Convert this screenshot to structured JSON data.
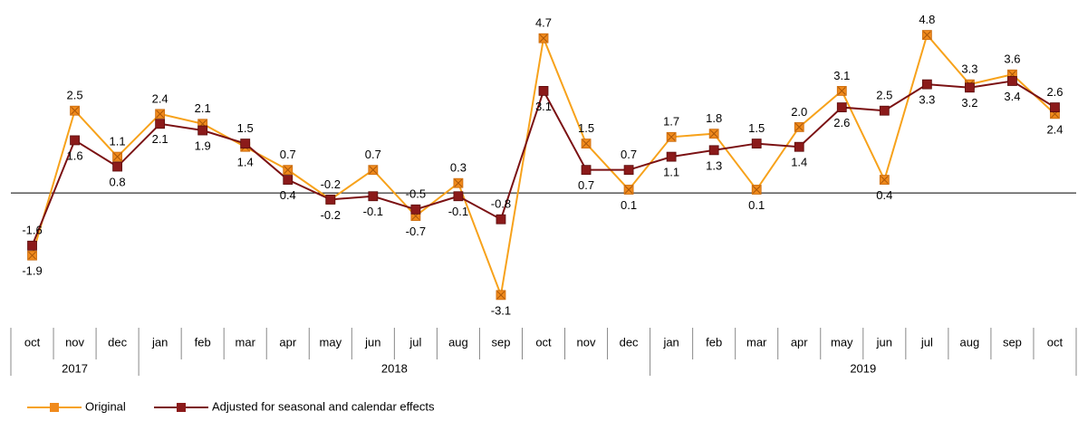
{
  "chart_data": {
    "type": "line",
    "categories": [
      "oct",
      "nov",
      "dec",
      "jan",
      "feb",
      "mar",
      "apr",
      "may",
      "jun",
      "jul",
      "aug",
      "sep",
      "oct",
      "nov",
      "dec",
      "jan",
      "feb",
      "mar",
      "apr",
      "may",
      "jun",
      "jul",
      "aug",
      "sep",
      "oct"
    ],
    "category_groups": [
      {
        "label": "2017",
        "count": 3
      },
      {
        "label": "2018",
        "count": 12
      },
      {
        "label": "2019",
        "count": 10
      }
    ],
    "ylim": [
      -3.6,
      5.6
    ],
    "series": [
      {
        "name": "Original",
        "color": "#f7a21b",
        "marker_color": "#f08a1c",
        "values": [
          -1.9,
          2.5,
          1.1,
          2.4,
          2.1,
          1.4,
          0.7,
          -0.2,
          0.7,
          -0.7,
          0.3,
          -3.1,
          4.7,
          1.5,
          0.1,
          1.7,
          1.8,
          0.1,
          2.0,
          3.1,
          0.4,
          4.8,
          3.3,
          3.6,
          2.4
        ],
        "value_labels": [
          "-1.9",
          "2.5",
          "1.1",
          "2.4",
          "2.1",
          "1.4",
          "0.7",
          "-0.2",
          "0.7",
          "-0.7",
          "0.3",
          "-3.1",
          "4.7",
          "1.5",
          "0.1",
          "1.7",
          "1.8",
          "0.1",
          "2.0",
          "3.1",
          "0.4",
          "4.8",
          "3.3",
          "3.6",
          "2.4"
        ]
      },
      {
        "name": "Adjusted for seasonal and calendar effects",
        "color": "#7b1113",
        "marker_color": "#8b1a1a",
        "values": [
          -1.6,
          1.6,
          0.8,
          2.1,
          1.9,
          1.5,
          0.4,
          -0.2,
          -0.1,
          -0.5,
          -0.1,
          -0.8,
          3.1,
          0.7,
          0.7,
          1.1,
          1.3,
          1.5,
          1.4,
          2.6,
          2.5,
          3.3,
          3.2,
          3.4,
          2.6
        ],
        "value_labels": [
          "-1.6",
          "1.6",
          "0.8",
          "2.1",
          "1.9",
          "1.5",
          "0.4",
          "-0.2",
          "-0.1",
          "-0.5",
          "-0.1",
          "-0.8",
          "3.1",
          "0.7",
          "0.7",
          "1.1",
          "1.3",
          "1.5",
          "1.4",
          "2.6",
          "2.5",
          "3.3",
          "3.2",
          "3.4",
          "2.6"
        ]
      }
    ]
  }
}
